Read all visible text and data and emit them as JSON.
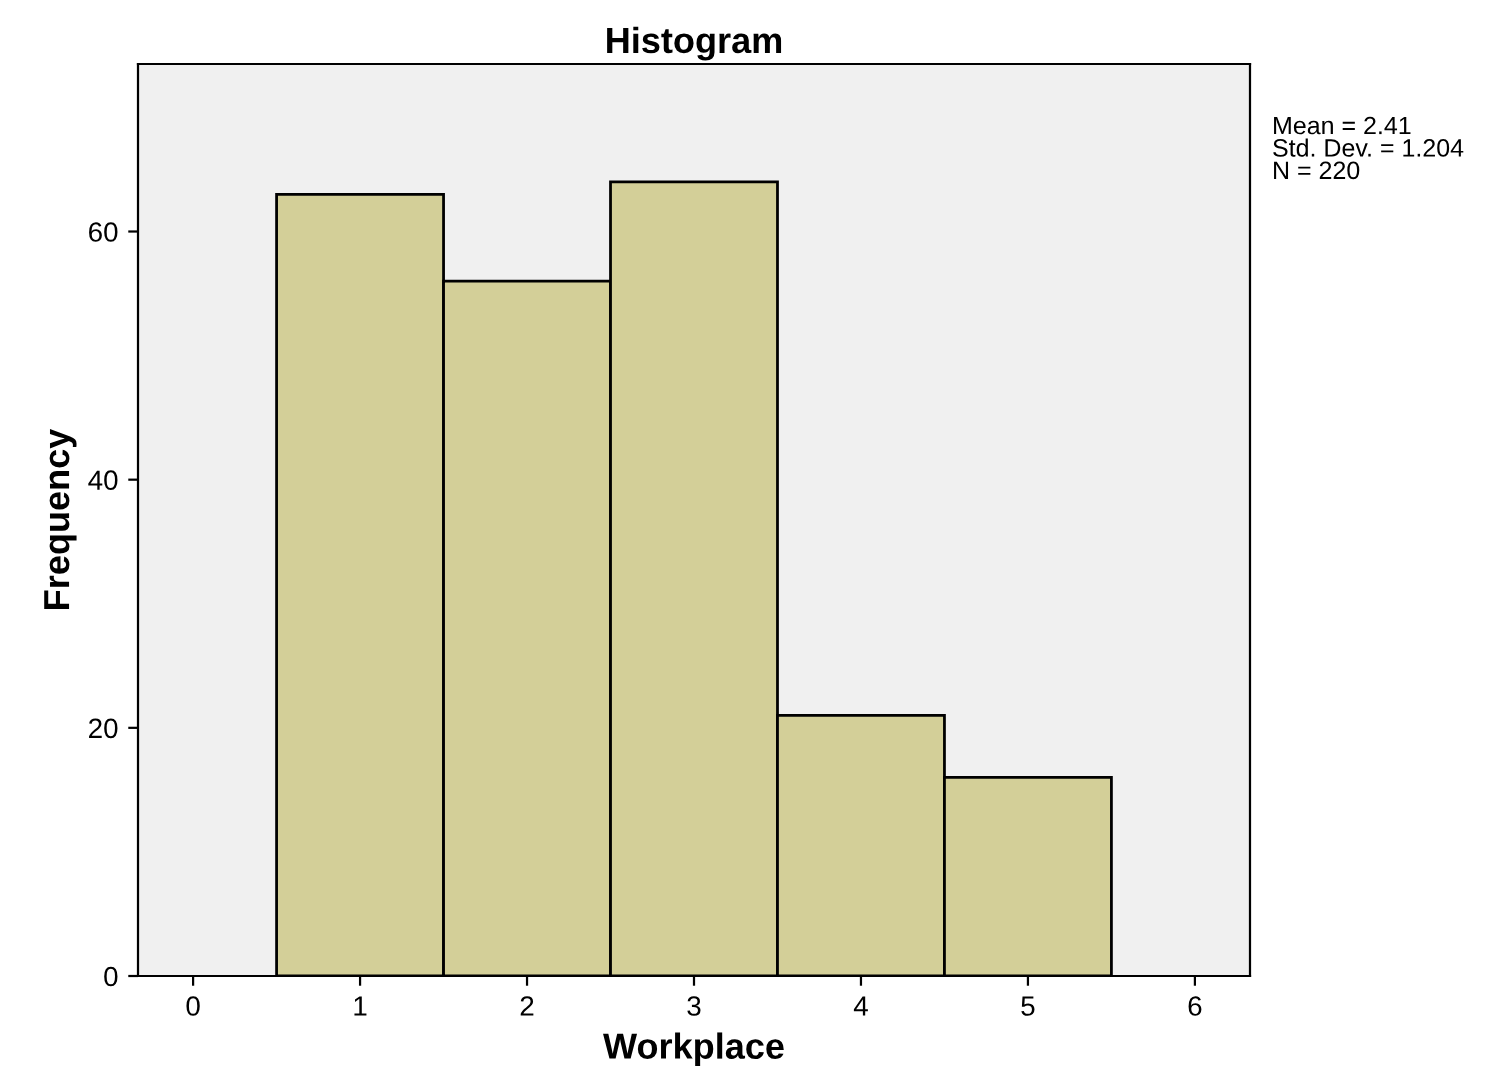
{
  "chart_data": {
    "type": "histogram",
    "title": "Histogram",
    "xlabel": "Workplace",
    "ylabel": "Frequency",
    "bins": [
      0.5,
      1.5,
      2.5,
      3.5,
      4.5,
      5.5
    ],
    "values": [
      63,
      56,
      64,
      21,
      16
    ],
    "color": "#d3cf98",
    "xlim": [
      -0.33,
      6.33
    ],
    "ylim": [
      0,
      73.5
    ],
    "xticks": [
      0,
      1,
      2,
      3,
      4,
      5,
      6
    ],
    "yticks": [
      0,
      20,
      40,
      60
    ],
    "grid": false,
    "annotations": [
      "Mean = 2.41\nStd. Dev. = 1.204\nN = 220"
    ]
  }
}
